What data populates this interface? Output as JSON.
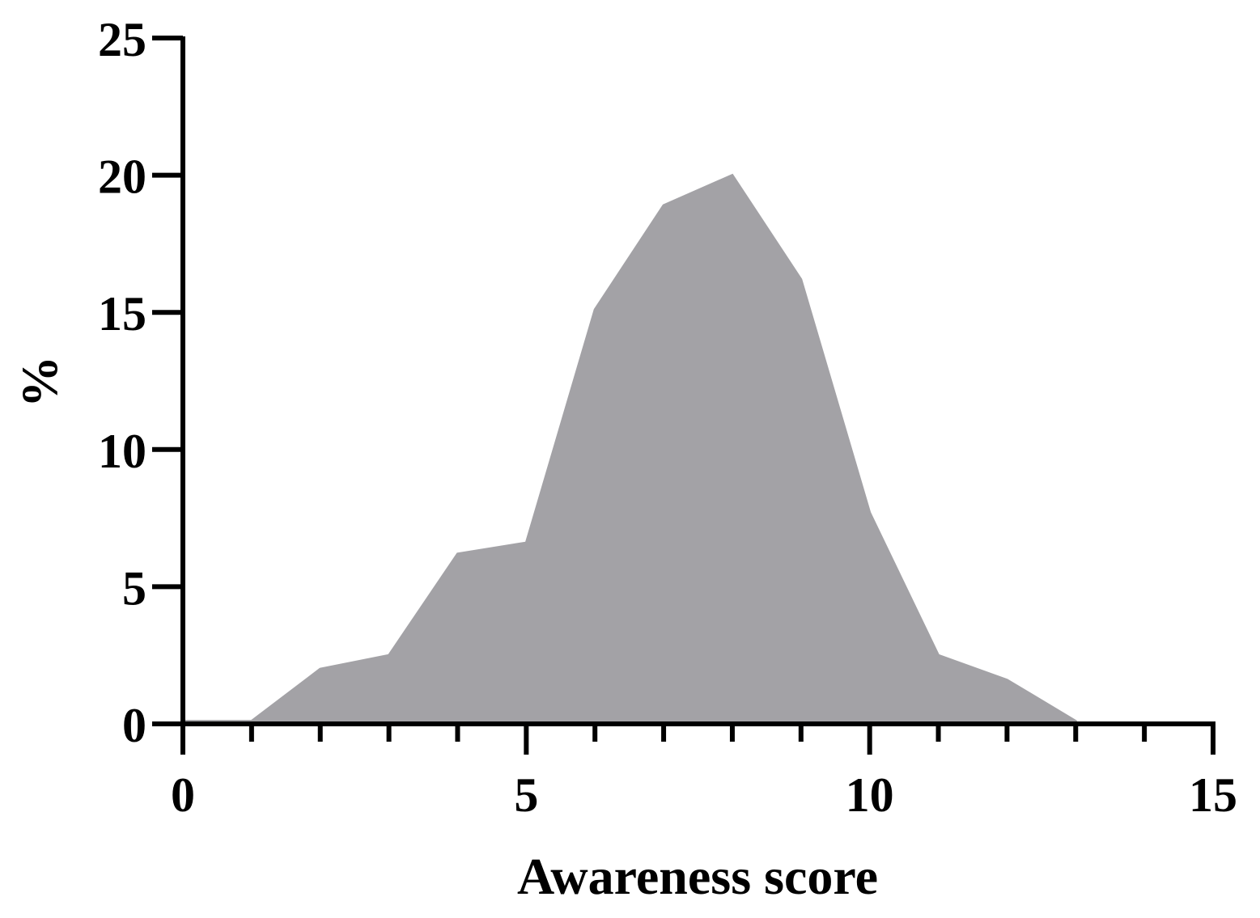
{
  "chart_data": {
    "type": "area",
    "xlabel": "Awareness score",
    "ylabel": "%",
    "xlim": [
      0,
      15
    ],
    "ylim": [
      0,
      25
    ],
    "x_ticks_major": [
      0,
      5,
      10,
      15
    ],
    "x_ticks_minor": [
      1,
      2,
      3,
      4,
      6,
      7,
      8,
      9,
      11,
      12,
      13,
      14
    ],
    "y_ticks": [
      0,
      5,
      10,
      15,
      20,
      25
    ],
    "x": [
      0,
      1,
      2,
      3,
      4,
      5,
      6,
      7,
      8,
      9,
      10,
      11,
      12,
      13
    ],
    "values": [
      0.1,
      0.1,
      2.0,
      2.5,
      6.2,
      6.6,
      15.1,
      18.9,
      20.0,
      16.2,
      7.7,
      2.5,
      1.6,
      0.1
    ],
    "fill_color": "#a3a2a6",
    "axis_color": "#000000",
    "grid": false
  }
}
